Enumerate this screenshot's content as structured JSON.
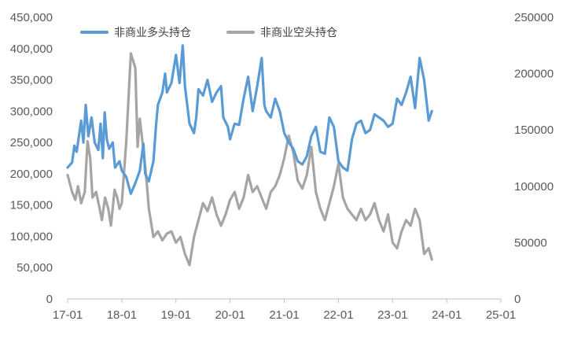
{
  "chart_data": {
    "type": "line",
    "title": "",
    "grid": false,
    "legend_position": "top-left",
    "x_ticks": [
      "17-01",
      "18-01",
      "19-01",
      "20-01",
      "21-01",
      "22-01",
      "23-01",
      "24-01",
      "25-01"
    ],
    "x_domain": [
      0,
      96
    ],
    "y_left": {
      "min": 0,
      "max": 450000,
      "ticks": [
        0,
        50000,
        100000,
        150000,
        200000,
        250000,
        300000,
        350000,
        400000,
        450000
      ],
      "tick_labels": [
        "0",
        "50,000",
        "100,000",
        "150,000",
        "200,000",
        "250,000",
        "300,000",
        "350,000",
        "400,000",
        "450,000"
      ]
    },
    "y_right": {
      "min": 0,
      "max": 250000,
      "ticks": [
        0,
        50000,
        100000,
        150000,
        200000,
        250000
      ],
      "tick_labels": [
        "0",
        "50000",
        "100000",
        "150000",
        "200000",
        "250000"
      ]
    },
    "series": [
      {
        "name": "非商业多头持仓",
        "axis": "left",
        "color": "#5b9bd5",
        "points": [
          [
            0,
            210000
          ],
          [
            1,
            218000
          ],
          [
            1.5,
            245000
          ],
          [
            2,
            235000
          ],
          [
            3,
            285000
          ],
          [
            3.5,
            250000
          ],
          [
            4,
            310000
          ],
          [
            4.6,
            260000
          ],
          [
            5.3,
            290000
          ],
          [
            6,
            250000
          ],
          [
            6.8,
            238000
          ],
          [
            7.3,
            280000
          ],
          [
            7.8,
            225000
          ],
          [
            8.2,
            298000
          ],
          [
            8.7,
            255000
          ],
          [
            9.2,
            240000
          ],
          [
            10,
            250000
          ],
          [
            10.5,
            210000
          ],
          [
            11,
            215000
          ],
          [
            11.5,
            220000
          ],
          [
            12,
            205000
          ],
          [
            13,
            195000
          ],
          [
            14,
            168000
          ],
          [
            15,
            185000
          ],
          [
            16,
            205000
          ],
          [
            16.8,
            248000
          ],
          [
            17.2,
            200000
          ],
          [
            18,
            188000
          ],
          [
            19,
            220000
          ],
          [
            19.6,
            278000
          ],
          [
            20,
            310000
          ],
          [
            21,
            330000
          ],
          [
            21.6,
            360000
          ],
          [
            22,
            330000
          ],
          [
            23,
            345000
          ],
          [
            24,
            390000
          ],
          [
            24.8,
            345000
          ],
          [
            25.5,
            405000
          ],
          [
            26,
            340000
          ],
          [
            27,
            280000
          ],
          [
            28,
            265000
          ],
          [
            28.5,
            290000
          ],
          [
            29,
            335000
          ],
          [
            30,
            325000
          ],
          [
            31,
            350000
          ],
          [
            32,
            315000
          ],
          [
            33,
            330000
          ],
          [
            34,
            340000
          ],
          [
            34.5,
            290000
          ],
          [
            35.5,
            275000
          ],
          [
            36,
            255000
          ],
          [
            37,
            280000
          ],
          [
            38,
            278000
          ],
          [
            39,
            320000
          ],
          [
            40,
            355000
          ],
          [
            41,
            300000
          ],
          [
            42,
            340000
          ],
          [
            43,
            385000
          ],
          [
            43.6,
            310000
          ],
          [
            44,
            300000
          ],
          [
            45,
            290000
          ],
          [
            46,
            320000
          ],
          [
            47,
            300000
          ],
          [
            48,
            265000
          ],
          [
            49,
            250000
          ],
          [
            50,
            240000
          ],
          [
            51,
            220000
          ],
          [
            52,
            215000
          ],
          [
            53,
            228000
          ],
          [
            54,
            260000
          ],
          [
            55,
            275000
          ],
          [
            56,
            235000
          ],
          [
            57,
            232000
          ],
          [
            58,
            290000
          ],
          [
            59,
            275000
          ],
          [
            60,
            220000
          ],
          [
            61,
            210000
          ],
          [
            62,
            205000
          ],
          [
            63,
            255000
          ],
          [
            64,
            280000
          ],
          [
            65,
            285000
          ],
          [
            66,
            265000
          ],
          [
            67,
            270000
          ],
          [
            68,
            295000
          ],
          [
            69,
            290000
          ],
          [
            70,
            285000
          ],
          [
            71,
            275000
          ],
          [
            72,
            280000
          ],
          [
            73,
            320000
          ],
          [
            74,
            310000
          ],
          [
            75,
            330000
          ],
          [
            76,
            355000
          ],
          [
            77,
            305000
          ],
          [
            78,
            385000
          ],
          [
            79,
            350000
          ],
          [
            80,
            285000
          ],
          [
            80.7,
            300000
          ]
        ]
      },
      {
        "name": "非商业空头持仓",
        "axis": "right",
        "color": "#a5a5a5",
        "points": [
          [
            0,
            110000
          ],
          [
            1,
            95000
          ],
          [
            1.7,
            88000
          ],
          [
            2.3,
            100000
          ],
          [
            3,
            85000
          ],
          [
            3.8,
            95000
          ],
          [
            4.4,
            140000
          ],
          [
            5,
            125000
          ],
          [
            5.5,
            90000
          ],
          [
            6.3,
            95000
          ],
          [
            7,
            82000
          ],
          [
            7.6,
            70000
          ],
          [
            8.3,
            90000
          ],
          [
            9,
            80000
          ],
          [
            9.6,
            65000
          ],
          [
            10.4,
            97000
          ],
          [
            11,
            90000
          ],
          [
            11.5,
            80000
          ],
          [
            12,
            85000
          ],
          [
            13,
            140000
          ],
          [
            14,
            218000
          ],
          [
            15,
            205000
          ],
          [
            15.5,
            135000
          ],
          [
            16,
            160000
          ],
          [
            17,
            125000
          ],
          [
            17.6,
            100000
          ],
          [
            18,
            80000
          ],
          [
            19,
            55000
          ],
          [
            20,
            60000
          ],
          [
            21,
            52000
          ],
          [
            22,
            58000
          ],
          [
            23,
            60000
          ],
          [
            24,
            50000
          ],
          [
            25,
            55000
          ],
          [
            26,
            40000
          ],
          [
            27,
            30000
          ],
          [
            28,
            55000
          ],
          [
            29,
            70000
          ],
          [
            30,
            85000
          ],
          [
            31,
            78000
          ],
          [
            32,
            90000
          ],
          [
            33,
            75000
          ],
          [
            34,
            65000
          ],
          [
            35,
            75000
          ],
          [
            36,
            88000
          ],
          [
            37,
            95000
          ],
          [
            38,
            80000
          ],
          [
            39,
            90000
          ],
          [
            40,
            110000
          ],
          [
            41,
            95000
          ],
          [
            42,
            100000
          ],
          [
            43,
            90000
          ],
          [
            44,
            80000
          ],
          [
            45,
            95000
          ],
          [
            46,
            100000
          ],
          [
            47,
            110000
          ],
          [
            48,
            125000
          ],
          [
            49,
            145000
          ],
          [
            50,
            130000
          ],
          [
            51,
            105000
          ],
          [
            52,
            98000
          ],
          [
            53,
            110000
          ],
          [
            54,
            135000
          ],
          [
            55,
            95000
          ],
          [
            56,
            80000
          ],
          [
            57,
            70000
          ],
          [
            58,
            85000
          ],
          [
            59,
            100000
          ],
          [
            60,
            120000
          ],
          [
            61,
            90000
          ],
          [
            62,
            80000
          ],
          [
            63,
            75000
          ],
          [
            64,
            70000
          ],
          [
            65,
            80000
          ],
          [
            66,
            70000
          ],
          [
            67,
            75000
          ],
          [
            68,
            85000
          ],
          [
            69,
            70000
          ],
          [
            70,
            60000
          ],
          [
            71,
            75000
          ],
          [
            72,
            50000
          ],
          [
            73,
            45000
          ],
          [
            74,
            60000
          ],
          [
            75,
            70000
          ],
          [
            76,
            65000
          ],
          [
            77,
            80000
          ],
          [
            78,
            70000
          ],
          [
            79,
            40000
          ],
          [
            80,
            45000
          ],
          [
            80.7,
            35000
          ]
        ]
      }
    ]
  }
}
